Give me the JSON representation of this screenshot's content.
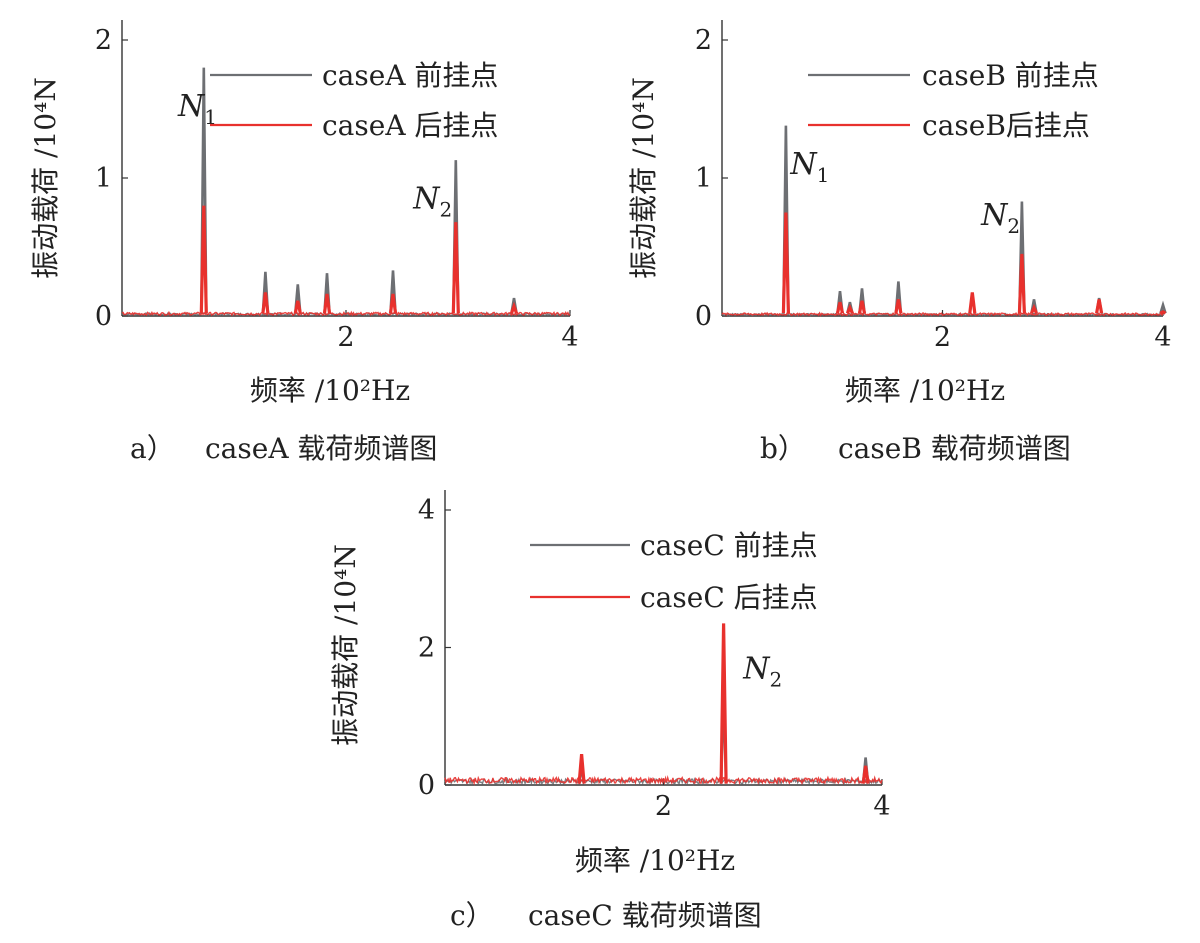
{
  "figure_label": "caseA / caseB / caseC 载荷频谱图",
  "chart_data": [
    {
      "type": "line",
      "id": "a",
      "caption_prefix": "a）",
      "caption": "caseA 载荷频谱图",
      "xlabel": "频率 /10²Hz",
      "ylabel": "振动载荷 /10⁴N",
      "xlim": [
        0,
        4
      ],
      "ylim": [
        0,
        2
      ],
      "xticks": [
        "2",
        "4"
      ],
      "yticks": [
        "0",
        "1",
        "2"
      ],
      "legend_position": "top-right",
      "series": [
        {
          "name": "caseA 前挂点",
          "color": "#6d6f73",
          "x": [
            0.73,
            1.28,
            1.57,
            1.83,
            2.42,
            2.98,
            3.5
          ],
          "y": [
            1.8,
            0.32,
            0.23,
            0.31,
            0.33,
            1.13,
            0.13
          ]
        },
        {
          "name": "caseA 后挂点",
          "color": "#e8312d",
          "x": [
            0.73,
            1.28,
            1.57,
            1.83,
            2.42,
            2.98,
            3.5
          ],
          "y": [
            0.8,
            0.17,
            0.11,
            0.16,
            0.16,
            0.68,
            0.07
          ]
        }
      ],
      "annotations": [
        {
          "text": "N",
          "sub": "1",
          "x": 0.5,
          "y": 1.45
        },
        {
          "text": "N",
          "sub": "2",
          "x": 2.6,
          "y": 0.78
        }
      ]
    },
    {
      "type": "line",
      "id": "b",
      "caption_prefix": "b）",
      "caption": "caseB 载荷频谱图",
      "xlabel": "频率 /10²Hz",
      "ylabel": "振动载荷 /10⁴N",
      "xlim": [
        0,
        4
      ],
      "ylim": [
        0,
        2
      ],
      "xticks": [
        "2",
        "4"
      ],
      "yticks": [
        "0",
        "1",
        "2"
      ],
      "legend_position": "top-right",
      "series": [
        {
          "name": "caseB 前挂点",
          "color": "#6d6f73",
          "x": [
            0.58,
            1.07,
            1.16,
            1.27,
            1.6,
            2.27,
            2.72,
            2.83,
            3.42,
            4.0
          ],
          "y": [
            1.38,
            0.18,
            0.1,
            0.2,
            0.25,
            0.15,
            0.83,
            0.12,
            0.13,
            0.08
          ]
        },
        {
          "name": "caseB后挂点",
          "color": "#e8312d",
          "x": [
            0.58,
            1.07,
            1.16,
            1.27,
            1.6,
            2.27,
            2.72,
            2.83,
            3.42,
            4.0
          ],
          "y": [
            0.75,
            0.1,
            0.06,
            0.11,
            0.12,
            0.17,
            0.45,
            0.06,
            0.12,
            0.03
          ]
        }
      ],
      "annotations": [
        {
          "text": "N",
          "sub": "1",
          "x": 0.62,
          "y": 1.03
        },
        {
          "text": "N",
          "sub": "2",
          "x": 2.35,
          "y": 0.66
        }
      ]
    },
    {
      "type": "line",
      "id": "c",
      "caption_prefix": "c）",
      "caption": "caseC 载荷频谱图",
      "xlabel": "频率 /10²Hz",
      "ylabel": "振动载荷 /10⁴N",
      "xlim": [
        0,
        4
      ],
      "ylim": [
        0,
        4
      ],
      "xticks": [
        "2",
        "4"
      ],
      "yticks": [
        "0",
        "2",
        "4"
      ],
      "legend_position": "top-right",
      "series": [
        {
          "name": "caseC 前挂点",
          "color": "#6d6f73",
          "x": [
            1.25,
            2.55,
            3.85
          ],
          "y": [
            0.25,
            1.3,
            0.4
          ]
        },
        {
          "name": "caseC 后挂点",
          "color": "#e8312d",
          "x": [
            1.25,
            2.55,
            3.85
          ],
          "y": [
            0.45,
            2.35,
            0.28
          ]
        }
      ],
      "annotations": [
        {
          "text": "N",
          "sub": "2",
          "x": 2.73,
          "y": 1.55
        }
      ]
    }
  ]
}
